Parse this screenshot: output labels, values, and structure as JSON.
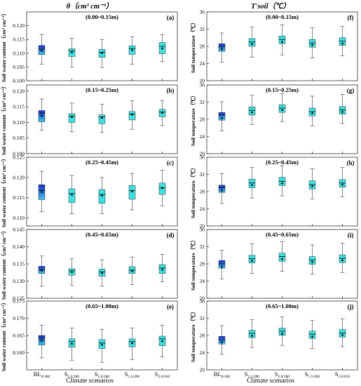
{
  "figure": {
    "left_title": "θ（cm³ cm⁻³）",
    "right_title": "T'soil（℃）",
    "x_axis_label": "Climate scenarios",
    "categories": [
      {
        "main": "BL",
        "sub": "0/380"
      },
      {
        "main": "S",
        "sub": "1.5/380"
      },
      {
        "main": "S",
        "sub": "2.0/380"
      },
      {
        "main": "S",
        "sub": "1.5/490"
      },
      {
        "main": "S",
        "sub": "2.0/650"
      }
    ],
    "colors": {
      "baseline_fill": "#1a2cc8",
      "scenario_fill": "#3ee0e0",
      "median": "#000000",
      "whisker": "#555555",
      "frame": "#333333"
    }
  },
  "chart_data": [
    {
      "type": "box",
      "panel": "a",
      "column": "left",
      "depth_label": "(0.00~0.15m)",
      "ylabel": "Soil water content（cm³ cm⁻³）",
      "ylim": [
        0.1,
        0.125
      ],
      "yticks": [
        0.1,
        0.105,
        0.11,
        0.115,
        0.12
      ],
      "boxes": [
        {
          "min": 0.106,
          "q1": 0.1095,
          "median": 0.1115,
          "q3": 0.1128,
          "max": 0.1168,
          "mean": 0.111
        },
        {
          "min": 0.105,
          "q1": 0.1088,
          "median": 0.1108,
          "q3": 0.1116,
          "max": 0.1154,
          "mean": 0.1104
        },
        {
          "min": 0.1048,
          "q1": 0.1085,
          "median": 0.1103,
          "q3": 0.1114,
          "max": 0.115,
          "mean": 0.1102
        },
        {
          "min": 0.106,
          "q1": 0.1096,
          "median": 0.1117,
          "q3": 0.1127,
          "max": 0.116,
          "mean": 0.1112
        },
        {
          "min": 0.107,
          "q1": 0.1098,
          "median": 0.1125,
          "q3": 0.1139,
          "max": 0.1168,
          "mean": 0.1118
        }
      ]
    },
    {
      "type": "box",
      "panel": "b",
      "column": "left",
      "depth_label": "(0.15~0.25m)",
      "ylabel": "Soil water content（cm³ cm⁻³）",
      "ylim": [
        0.1,
        0.122
      ],
      "yticks": [
        0.1,
        0.105,
        0.11,
        0.115,
        0.12
      ],
      "boxes": [
        {
          "min": 0.1075,
          "q1": 0.1102,
          "median": 0.113,
          "q3": 0.1138,
          "max": 0.1175,
          "mean": 0.1122
        },
        {
          "min": 0.107,
          "q1": 0.11,
          "median": 0.112,
          "q3": 0.1128,
          "max": 0.1162,
          "mean": 0.1118
        },
        {
          "min": 0.1068,
          "q1": 0.1096,
          "median": 0.1118,
          "q3": 0.1124,
          "max": 0.1158,
          "mean": 0.1116
        },
        {
          "min": 0.1078,
          "q1": 0.1108,
          "median": 0.1127,
          "q3": 0.1135,
          "max": 0.117,
          "mean": 0.1126
        },
        {
          "min": 0.109,
          "q1": 0.1118,
          "median": 0.1133,
          "q3": 0.1142,
          "max": 0.117,
          "mean": 0.1132
        }
      ]
    },
    {
      "type": "box",
      "panel": "c",
      "column": "left",
      "depth_label": "(0.25~0.45m)",
      "ylabel": "Soil water content（cm³ cm⁻³）",
      "ylim": [
        0.108,
        0.125
      ],
      "yticks": [
        0.11,
        0.115,
        0.12,
        0.125
      ],
      "boxes": [
        {
          "min": 0.1115,
          "q1": 0.1145,
          "median": 0.1168,
          "q3": 0.1182,
          "max": 0.1215,
          "mean": 0.1165
        },
        {
          "min": 0.111,
          "q1": 0.1138,
          "median": 0.116,
          "q3": 0.1172,
          "max": 0.1205,
          "mean": 0.1158
        },
        {
          "min": 0.111,
          "q1": 0.1136,
          "median": 0.1158,
          "q3": 0.117,
          "max": 0.12,
          "mean": 0.1156
        },
        {
          "min": 0.112,
          "q1": 0.1146,
          "median": 0.1168,
          "q3": 0.118,
          "max": 0.121,
          "mean": 0.1166
        },
        {
          "min": 0.113,
          "q1": 0.1158,
          "median": 0.1175,
          "q3": 0.1186,
          "max": 0.1218,
          "mean": 0.1174
        }
      ]
    },
    {
      "type": "box",
      "panel": "d",
      "column": "left",
      "depth_label": "(0.45~0.65m)",
      "ylabel": "Soil water content（cm³ cm⁻³）",
      "ylim": [
        0.125,
        0.145
      ],
      "yticks": [
        0.125,
        0.13,
        0.135,
        0.14,
        0.145
      ],
      "boxes": [
        {
          "min": 0.1285,
          "q1": 0.1322,
          "median": 0.1333,
          "q3": 0.1343,
          "max": 0.1373,
          "mean": 0.1332
        },
        {
          "min": 0.1288,
          "q1": 0.1317,
          "median": 0.133,
          "q3": 0.1336,
          "max": 0.1365,
          "mean": 0.1327
        },
        {
          "min": 0.1285,
          "q1": 0.1314,
          "median": 0.1327,
          "q3": 0.1335,
          "max": 0.1362,
          "mean": 0.1324
        },
        {
          "min": 0.129,
          "q1": 0.1322,
          "median": 0.1332,
          "q3": 0.1342,
          "max": 0.137,
          "mean": 0.133
        },
        {
          "min": 0.1298,
          "q1": 0.1322,
          "median": 0.1338,
          "q3": 0.1348,
          "max": 0.1378,
          "mean": 0.1334
        }
      ]
    },
    {
      "type": "box",
      "panel": "e",
      "column": "left",
      "depth_label": "(0.65~1.00m)",
      "ylabel": "Soil water content（cm³ cm⁻³）",
      "ylim": [
        0.155,
        0.175
      ],
      "yticks": [
        0.16,
        0.165,
        0.17,
        0.175
      ],
      "boxes": [
        {
          "min": 0.1585,
          "q1": 0.1622,
          "median": 0.1642,
          "q3": 0.165,
          "max": 0.168,
          "mean": 0.1636
        },
        {
          "min": 0.1578,
          "q1": 0.1616,
          "median": 0.1632,
          "q3": 0.164,
          "max": 0.1672,
          "mean": 0.1627
        },
        {
          "min": 0.1572,
          "q1": 0.1612,
          "median": 0.1628,
          "q3": 0.1638,
          "max": 0.1668,
          "mean": 0.1624
        },
        {
          "min": 0.158,
          "q1": 0.1617,
          "median": 0.1632,
          "q3": 0.164,
          "max": 0.1672,
          "mean": 0.1628
        },
        {
          "min": 0.1588,
          "q1": 0.162,
          "median": 0.164,
          "q3": 0.1648,
          "max": 0.168,
          "mean": 0.1634
        }
      ]
    },
    {
      "type": "box",
      "panel": "f",
      "column": "right",
      "depth_label": "(0.00~0.15m)",
      "ylabel": "Soil temperature（℃）",
      "ylim": [
        20,
        36
      ],
      "yticks": [
        20,
        24,
        28,
        32,
        36
      ],
      "boxes": [
        {
          "min": 24.3,
          "q1": 26.8,
          "median": 27.9,
          "q3": 28.6,
          "max": 31.1,
          "mean": 27.4
        },
        {
          "min": 25.5,
          "q1": 28.0,
          "median": 29.0,
          "q3": 29.8,
          "max": 32.5,
          "mean": 28.6
        },
        {
          "min": 26.0,
          "q1": 28.6,
          "median": 29.6,
          "q3": 30.4,
          "max": 33.0,
          "mean": 29.1
        },
        {
          "min": 25.3,
          "q1": 27.8,
          "median": 28.8,
          "q3": 29.6,
          "max": 32.3,
          "mean": 28.4
        },
        {
          "min": 25.8,
          "q1": 28.2,
          "median": 29.2,
          "q3": 30.0,
          "max": 32.6,
          "mean": 28.7
        }
      ]
    },
    {
      "type": "box",
      "panel": "g",
      "column": "right",
      "depth_label": "(0.15~0.25m)",
      "ylabel": "Soil temperature（℃）",
      "ylim": [
        20,
        36
      ],
      "yticks": [
        20,
        24,
        28,
        32,
        36
      ],
      "boxes": [
        {
          "min": 25.3,
          "q1": 27.8,
          "median": 29.0,
          "q3": 29.6,
          "max": 32.1,
          "mean": 28.3
        },
        {
          "min": 26.8,
          "q1": 29.0,
          "median": 30.1,
          "q3": 30.9,
          "max": 33.6,
          "mean": 29.7
        },
        {
          "min": 27.5,
          "q1": 29.6,
          "median": 30.6,
          "q3": 31.4,
          "max": 34.0,
          "mean": 30.2
        },
        {
          "min": 26.5,
          "q1": 28.8,
          "median": 29.8,
          "q3": 30.6,
          "max": 33.4,
          "mean": 29.5
        },
        {
          "min": 27.0,
          "q1": 29.2,
          "median": 30.2,
          "q3": 31.0,
          "max": 33.8,
          "mean": 29.8
        }
      ]
    },
    {
      "type": "box",
      "panel": "h",
      "column": "right",
      "depth_label": "(0.25~0.45m)",
      "ylabel": "Soil temperature（℃）",
      "ylim": [
        20,
        36
      ],
      "yticks": [
        20,
        24,
        28,
        32,
        36
      ],
      "boxes": [
        {
          "min": 25.2,
          "q1": 27.8,
          "median": 28.9,
          "q3": 29.5,
          "max": 32.2,
          "mean": 28.3
        },
        {
          "min": 26.5,
          "q1": 28.9,
          "median": 30.0,
          "q3": 30.9,
          "max": 33.6,
          "mean": 29.6
        },
        {
          "min": 27.0,
          "q1": 29.4,
          "median": 30.4,
          "q3": 31.3,
          "max": 34.0,
          "mean": 30.0
        },
        {
          "min": 26.3,
          "q1": 28.6,
          "median": 29.6,
          "q3": 30.5,
          "max": 33.3,
          "mean": 29.3
        },
        {
          "min": 26.8,
          "q1": 29.0,
          "median": 30.0,
          "q3": 30.8,
          "max": 33.6,
          "mean": 29.7
        }
      ]
    },
    {
      "type": "box",
      "panel": "i",
      "column": "right",
      "depth_label": "(0.45~0.65m)",
      "ylabel": "Soil temperature（℃）",
      "ylim": [
        20,
        36
      ],
      "yticks": [
        20,
        24,
        28,
        32,
        36
      ],
      "boxes": [
        {
          "min": 24.5,
          "q1": 27.0,
          "median": 28.0,
          "q3": 28.8,
          "max": 31.2,
          "mean": 27.4
        },
        {
          "min": 25.8,
          "q1": 28.2,
          "median": 29.2,
          "q3": 30.0,
          "max": 32.7,
          "mean": 28.8
        },
        {
          "min": 26.3,
          "q1": 28.6,
          "median": 29.7,
          "q3": 30.5,
          "max": 33.2,
          "mean": 29.2
        },
        {
          "min": 25.6,
          "q1": 27.9,
          "median": 28.9,
          "q3": 29.7,
          "max": 32.4,
          "mean": 28.5
        },
        {
          "min": 26.0,
          "q1": 28.3,
          "median": 29.3,
          "q3": 30.1,
          "max": 32.8,
          "mean": 28.9
        }
      ]
    },
    {
      "type": "box",
      "panel": "j",
      "column": "right",
      "depth_label": "(0.65~1.00m)",
      "ylabel": "Soil temperature（℃）",
      "ylim": [
        20,
        36
      ],
      "yticks": [
        20,
        24,
        28,
        32,
        36
      ],
      "boxes": [
        {
          "min": 23.6,
          "q1": 26.0,
          "median": 27.0,
          "q3": 27.8,
          "max": 30.3,
          "mean": 26.5
        },
        {
          "min": 25.2,
          "q1": 27.5,
          "median": 28.5,
          "q3": 29.2,
          "max": 31.7,
          "mean": 28.0
        },
        {
          "min": 25.7,
          "q1": 28.0,
          "median": 29.0,
          "q3": 29.7,
          "max": 32.3,
          "mean": 28.5
        },
        {
          "min": 25.0,
          "q1": 27.3,
          "median": 28.3,
          "q3": 29.0,
          "max": 31.5,
          "mean": 27.8
        },
        {
          "min": 25.4,
          "q1": 27.6,
          "median": 28.6,
          "q3": 29.4,
          "max": 31.9,
          "mean": 28.2
        }
      ]
    }
  ]
}
